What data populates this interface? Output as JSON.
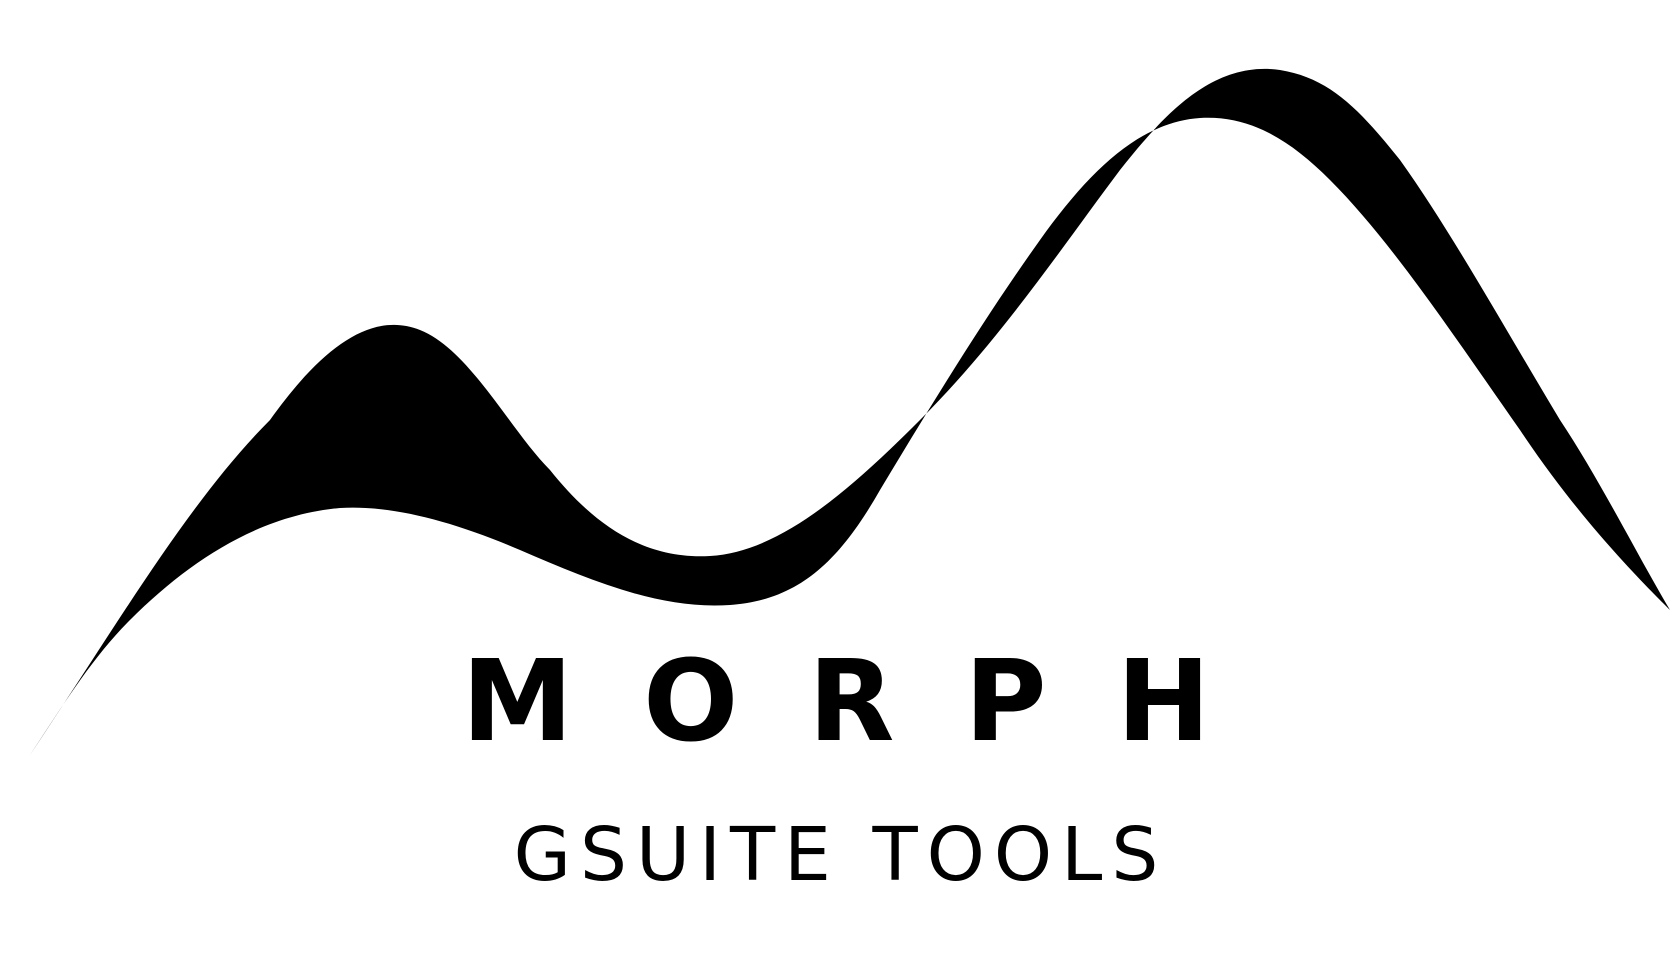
{
  "logo": {
    "icon": "mountain-wave-icon",
    "name": "MORPH",
    "tagline": "GSUITE TOOLS"
  },
  "colors": {
    "ink": "#000000",
    "background": "#ffffff"
  }
}
